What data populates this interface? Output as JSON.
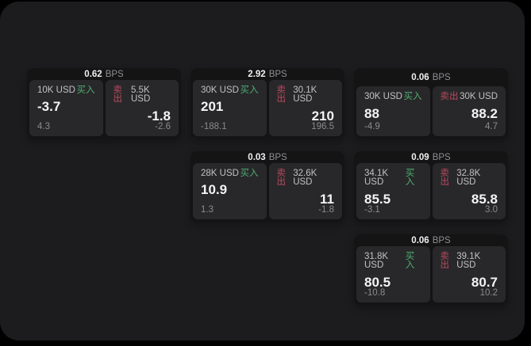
{
  "labels": {
    "bps_unit": "BPS",
    "buy": "买入",
    "sell": "卖出"
  },
  "colors": {
    "buy_green": "#4fae72",
    "sell_red": "#bb4a60",
    "panel_background": "#1c1c1e",
    "card_background": "#141415",
    "tile_background": "#28282a"
  },
  "cards": [
    {
      "row": 1,
      "col": 1,
      "bps": "0.62",
      "buy": {
        "size": "10K USD",
        "price": "-3.7",
        "delta": "4.3"
      },
      "sell": {
        "size": "5.5K USD",
        "price": "-1.8",
        "delta": "-2.6"
      }
    },
    {
      "row": 1,
      "col": 2,
      "bps": "2.92",
      "buy": {
        "size": "30K USD",
        "price": "201",
        "delta": "-188.1"
      },
      "sell": {
        "size": "30.1K USD",
        "price": "210",
        "delta": "196.5"
      }
    },
    {
      "row": 1,
      "col": 3,
      "bps": "0.06",
      "buy": {
        "size": "30K USD",
        "price": "88",
        "delta": "-4.9"
      },
      "sell": {
        "size": "30K USD",
        "price": "88.2",
        "delta": "4.7"
      }
    },
    {
      "row": 2,
      "col": 2,
      "bps": "0.03",
      "buy": {
        "size": "28K USD",
        "price": "10.9",
        "delta": "1.3"
      },
      "sell": {
        "size": "32.6K USD",
        "price": "11",
        "delta": "-1.8"
      }
    },
    {
      "row": 2,
      "col": 3,
      "bps": "0.09",
      "buy": {
        "size": "34.1K USD",
        "price": "85.5",
        "delta": "-3.1"
      },
      "sell": {
        "size": "32.8K USD",
        "price": "85.8",
        "delta": "3.0"
      }
    },
    {
      "row": 3,
      "col": 3,
      "bps": "0.06",
      "buy": {
        "size": "31.8K USD",
        "price": "80.5",
        "delta": "-10.8"
      },
      "sell": {
        "size": "39.1K USD",
        "price": "80.7",
        "delta": "10.2"
      }
    }
  ]
}
